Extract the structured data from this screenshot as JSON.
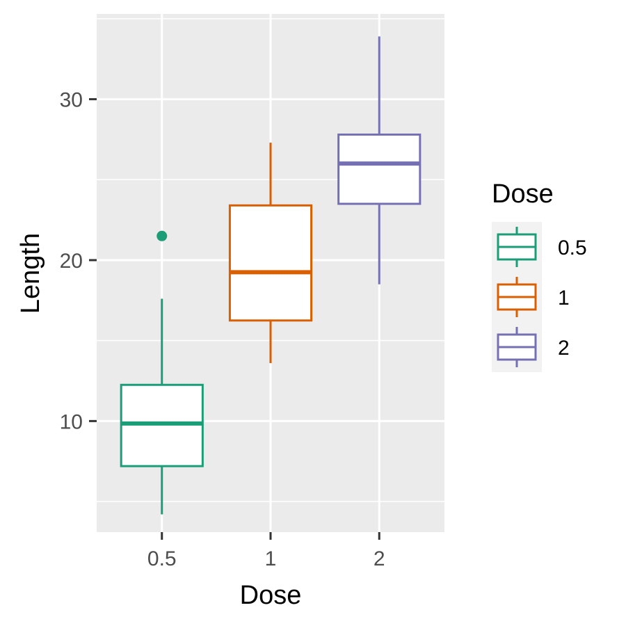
{
  "chart_data": {
    "type": "boxplot",
    "xlabel": "Dose",
    "ylabel": "Length",
    "categories": [
      "0.5",
      "1",
      "2"
    ],
    "ylim": [
      3.1,
      35.3
    ],
    "yticks": [
      10,
      20,
      30
    ],
    "grid": true,
    "legend": {
      "title": "Dose",
      "placement": "right",
      "entries": [
        "0.5",
        "1",
        "2"
      ]
    },
    "colors": [
      "#1b9e77",
      "#d95f02",
      "#7570b3"
    ],
    "panel_background": "#ebebeb",
    "series": [
      {
        "category": "0.5",
        "min": 4.2,
        "q1": 7.2,
        "median": 9.85,
        "q3": 12.25,
        "max": 17.6,
        "outliers": [
          21.5
        ]
      },
      {
        "category": "1",
        "min": 13.6,
        "q1": 16.25,
        "median": 19.25,
        "q3": 23.4,
        "max": 27.3,
        "outliers": []
      },
      {
        "category": "2",
        "min": 18.5,
        "q1": 23.5,
        "median": 26.0,
        "q3": 27.8,
        "max": 33.9,
        "outliers": []
      }
    ]
  }
}
